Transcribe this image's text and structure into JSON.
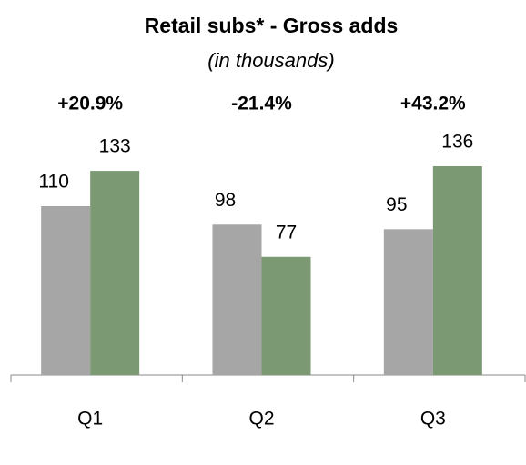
{
  "chart_data": {
    "type": "bar",
    "title": "Retail subs* - Gross adds",
    "subtitle": "(in thousands)",
    "categories": [
      "Q1",
      "Q2",
      "Q3"
    ],
    "annotations": [
      "+20.9%",
      "-21.4%",
      "+43.2%"
    ],
    "series": [
      {
        "color": "#a6a6a6",
        "values": [
          110,
          98,
          95
        ]
      },
      {
        "color": "#7b9a73",
        "values": [
          133,
          77,
          136
        ]
      }
    ]
  }
}
